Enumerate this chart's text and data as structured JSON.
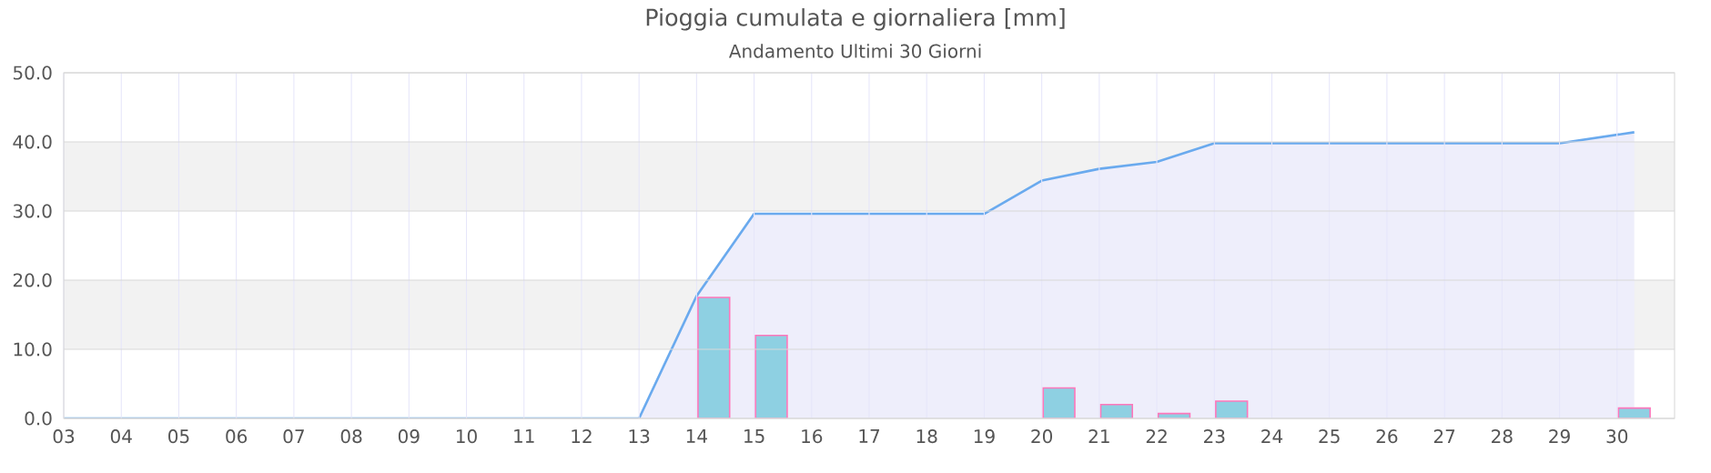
{
  "chart_data": {
    "type": "bar",
    "title": "Pioggia cumulata e giornaliera [mm]",
    "subtitle": "Andamento Ultimi 30 Giorni",
    "series": [
      {
        "color": "#8ed0e2",
        "x": [
          14.3,
          15.3,
          20.3,
          21.3,
          22.3,
          23.3,
          30.3
        ],
        "values": [
          17.5,
          12.0,
          4.4,
          2.0,
          0.7,
          2.5,
          1.5
        ]
      },
      {
        "type": "area",
        "color": "#6aaaee",
        "x": [
          3,
          13,
          14,
          15,
          19,
          20,
          21,
          22,
          23,
          29,
          30.3
        ],
        "values": [
          0,
          0,
          17.7,
          29.6,
          29.6,
          34.4,
          36.1,
          37.1,
          39.8,
          39.8,
          41.4
        ]
      }
    ],
    "xlim": [
      3,
      31
    ],
    "xticks": [
      {
        "value": 3,
        "label": "03"
      },
      {
        "value": 4,
        "label": "04"
      },
      {
        "value": 5,
        "label": "05"
      },
      {
        "value": 6,
        "label": "06"
      },
      {
        "value": 7,
        "label": "07"
      },
      {
        "value": 8,
        "label": "08"
      },
      {
        "value": 9,
        "label": "09"
      },
      10,
      11,
      12,
      13,
      14,
      15,
      16,
      17,
      18,
      19,
      20,
      21,
      22,
      23,
      24,
      25,
      26,
      27,
      28,
      29,
      30
    ],
    "ylim": [
      0,
      50
    ],
    "yticks": [
      {
        "value": 0,
        "label": "0.0"
      },
      {
        "value": 10,
        "label": "10.0"
      },
      {
        "value": 20,
        "label": "20.0"
      },
      {
        "value": 30,
        "label": "30.0"
      },
      {
        "value": 40,
        "label": "40.0"
      },
      {
        "value": 50,
        "label": "50.0"
      }
    ],
    "grid": true,
    "bands": [
      {
        "axis": "y",
        "from": 10,
        "to": 20,
        "color": "#f2f2f2"
      },
      {
        "axis": "y",
        "from": 30,
        "to": 40,
        "color": "#f2f2f2"
      }
    ]
  }
}
